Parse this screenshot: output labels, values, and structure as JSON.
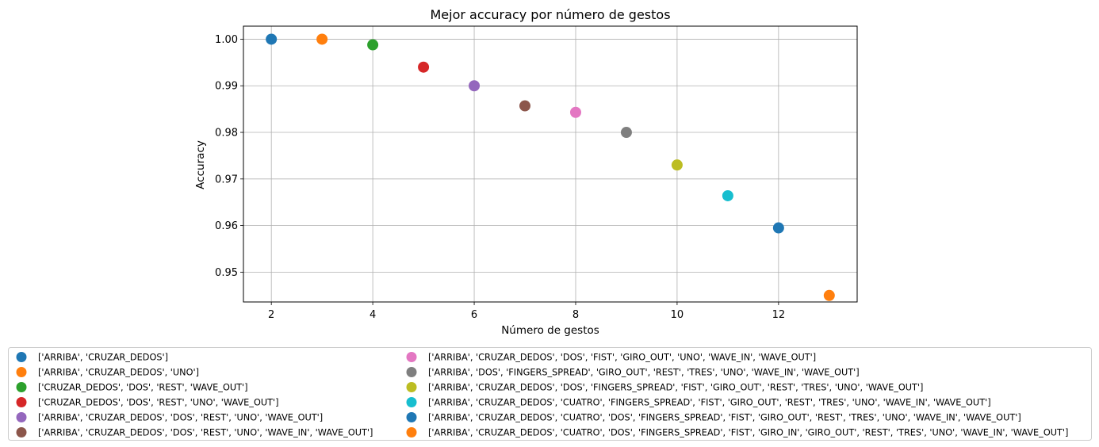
{
  "chart_data": {
    "type": "scatter",
    "title": "Mejor accuracy por número de gestos",
    "xlabel": "Número de gestos",
    "ylabel": "Accuracy",
    "xlim": [
      1.45,
      13.55
    ],
    "ylim": [
      0.9436,
      1.0028
    ],
    "xticks": [
      2,
      4,
      6,
      8,
      10,
      12
    ],
    "yticks": [
      0.95,
      0.96,
      0.97,
      0.98,
      0.99,
      1.0
    ],
    "grid": true,
    "legend_position": "bottom (below chart), two columns",
    "series": [
      {
        "name": "['ARRIBA', 'CRUZAR_DEDOS']",
        "x": 2,
        "y": 1.0,
        "color": "#1f77b4"
      },
      {
        "name": "['ARRIBA', 'CRUZAR_DEDOS', 'UNO']",
        "x": 3,
        "y": 1.0,
        "color": "#ff7f0e"
      },
      {
        "name": "['CRUZAR_DEDOS', 'DOS', 'REST', 'WAVE_OUT']",
        "x": 4,
        "y": 0.9988,
        "color": "#2ca02c"
      },
      {
        "name": "['CRUZAR_DEDOS', 'DOS', 'REST', 'UNO', 'WAVE_OUT']",
        "x": 5,
        "y": 0.994,
        "color": "#d62728"
      },
      {
        "name": "['ARRIBA', 'CRUZAR_DEDOS', 'DOS', 'REST', 'UNO', 'WAVE_OUT']",
        "x": 6,
        "y": 0.99,
        "color": "#9467bd"
      },
      {
        "name": "['ARRIBA', 'CRUZAR_DEDOS', 'DOS', 'REST', 'UNO', 'WAVE_IN', 'WAVE_OUT']",
        "x": 7,
        "y": 0.9857,
        "color": "#8c564b"
      },
      {
        "name": "['ARRIBA', 'CRUZAR_DEDOS', 'DOS', 'FIST', 'GIRO_OUT', 'UNO', 'WAVE_IN', 'WAVE_OUT']",
        "x": 8,
        "y": 0.9843,
        "color": "#e377c2"
      },
      {
        "name": "['ARRIBA', 'DOS', 'FINGERS_SPREAD', 'GIRO_OUT', 'REST', 'TRES', 'UNO', 'WAVE_IN', 'WAVE_OUT']",
        "x": 9,
        "y": 0.98,
        "color": "#7f7f7f"
      },
      {
        "name": "['ARRIBA', 'CRUZAR_DEDOS', 'DOS', 'FINGERS_SPREAD', 'FIST', 'GIRO_OUT', 'REST', 'TRES', 'UNO', 'WAVE_OUT']",
        "x": 10,
        "y": 0.973,
        "color": "#bcbd22"
      },
      {
        "name": "['ARRIBA', 'CRUZAR_DEDOS', 'CUATRO', 'FINGERS_SPREAD', 'FIST', 'GIRO_OUT', 'REST', 'TRES', 'UNO', 'WAVE_IN', 'WAVE_OUT']",
        "x": 11,
        "y": 0.9664,
        "color": "#17becf"
      },
      {
        "name": "['ARRIBA', 'CRUZAR_DEDOS', 'CUATRO', 'DOS', 'FINGERS_SPREAD', 'FIST', 'GIRO_OUT', 'REST', 'TRES', 'UNO', 'WAVE_IN', 'WAVE_OUT']",
        "x": 12,
        "y": 0.9595,
        "color": "#1f77b4"
      },
      {
        "name": "['ARRIBA', 'CRUZAR_DEDOS', 'CUATRO', 'DOS', 'FINGERS_SPREAD', 'FIST', 'GIRO_IN', 'GIRO_OUT', 'REST', 'TRES', 'UNO', 'WAVE_IN', 'WAVE_OUT']",
        "x": 13,
        "y": 0.945,
        "color": "#ff7f0e"
      }
    ]
  },
  "style": {
    "grid_color": "#b0b0b0",
    "axis_color": "#000000",
    "legend_border_color": "#cccccc"
  }
}
